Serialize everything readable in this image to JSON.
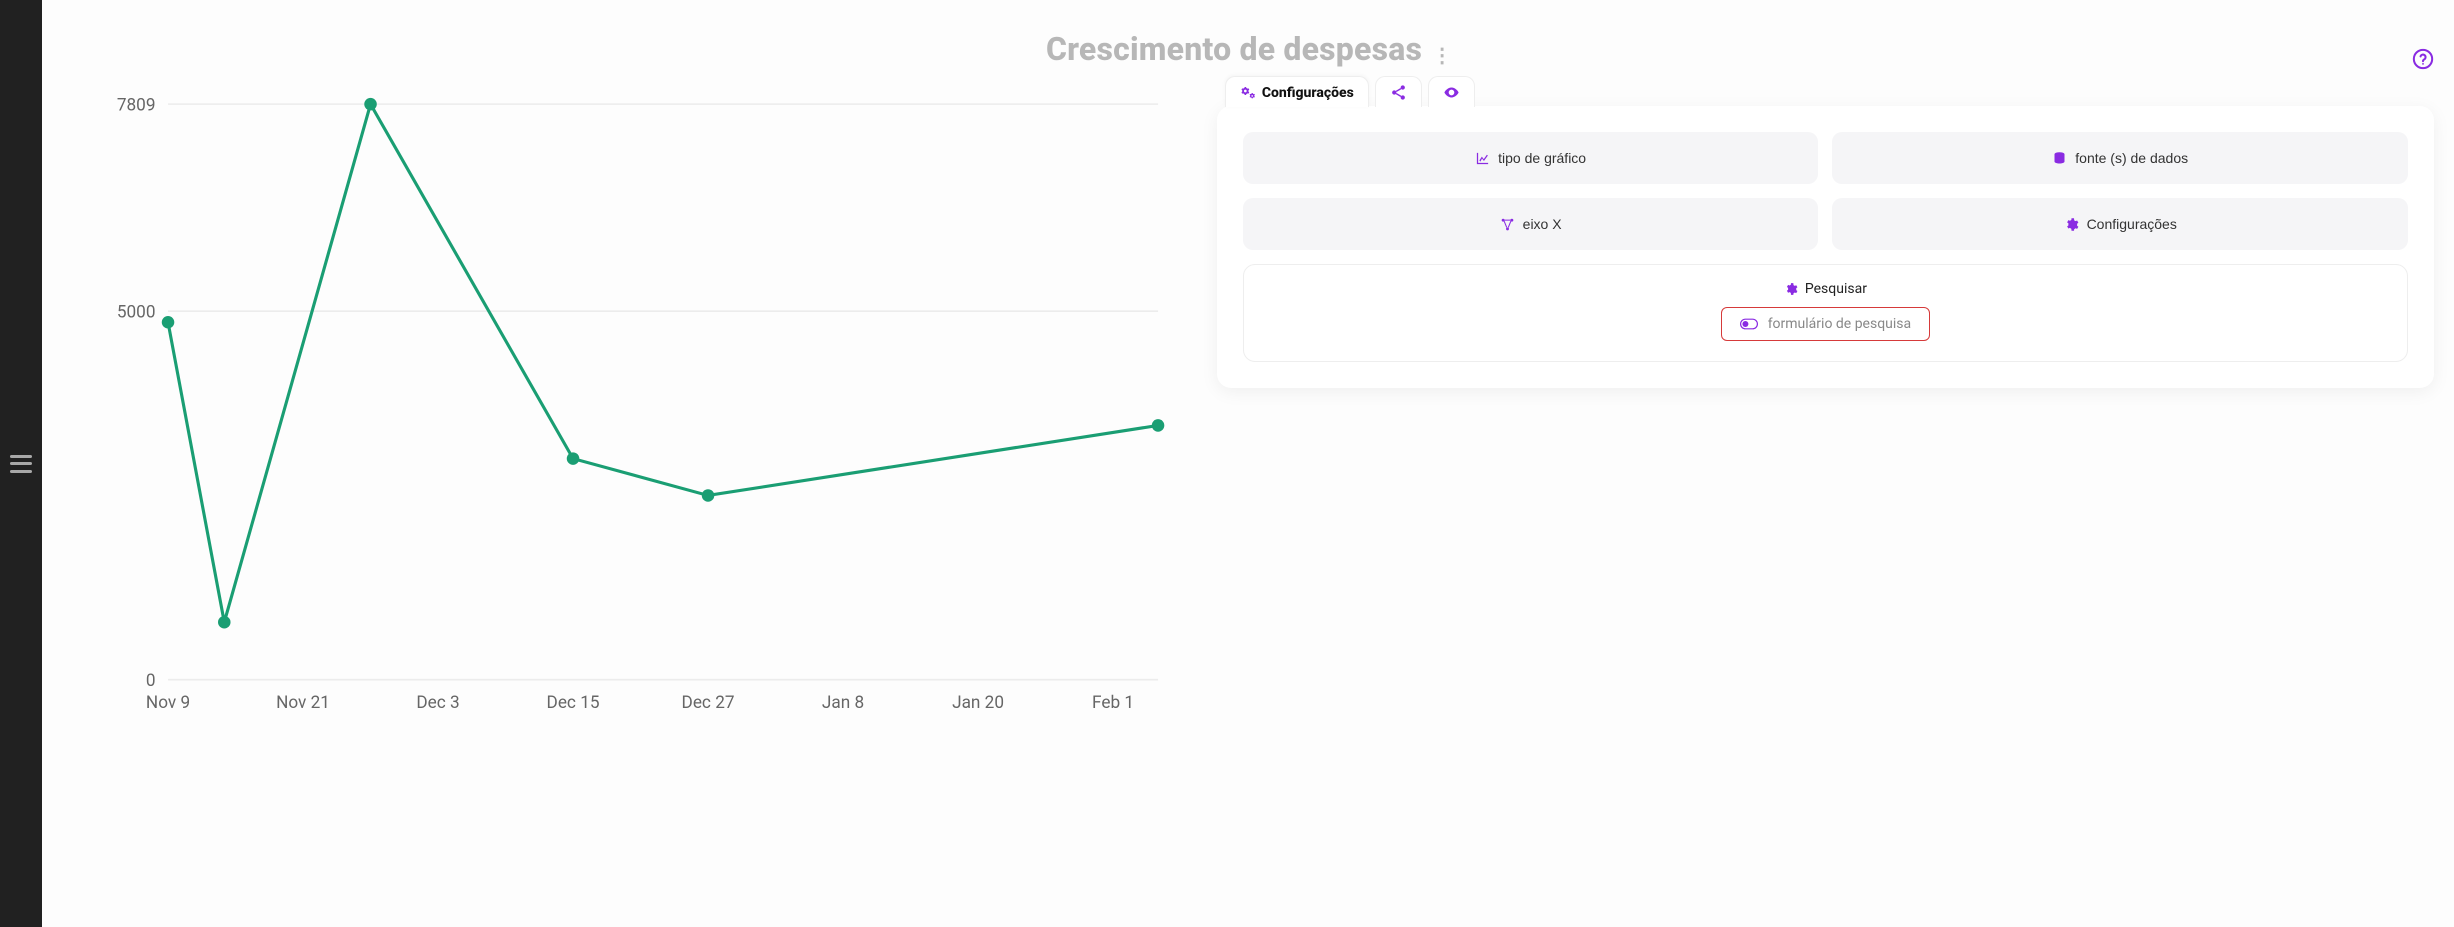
{
  "accent": "#8a2be2",
  "title": "Crescimento de despesas",
  "tabs": {
    "config": "Configurações"
  },
  "options": {
    "chart_type": "tipo de gráfico",
    "data_source": "fonte (s) de dados",
    "axis_x": "eixo X",
    "settings": "Configurações"
  },
  "search": {
    "title": "Pesquisar",
    "form_toggle": "formulário de pesquisa",
    "highlight_color": "#d63a3a"
  },
  "chart": {
    "type": "line",
    "series_color": "#1a9e73",
    "marker_radius": 4,
    "line_width": 2,
    "background": "#ffffff",
    "grid_color": "#ececec",
    "axis_text_color": "#666666",
    "axis_font_size": 11,
    "x_labels": [
      "Nov 9",
      "Nov 21",
      "Dec 3",
      "Dec 15",
      "Dec 27",
      "Jan 8",
      "Jan 20",
      "Feb 1"
    ],
    "x_tick_positions": [
      0,
      12,
      24,
      36,
      48,
      60,
      72,
      84
    ],
    "y_ticks": [
      0,
      5000,
      7809
    ],
    "ylim": [
      0,
      7809
    ],
    "xlim": [
      0,
      88
    ],
    "points": [
      {
        "x": 0,
        "y": 4850
      },
      {
        "x": 5,
        "y": 780
      },
      {
        "x": 18,
        "y": 7809
      },
      {
        "x": 36,
        "y": 3000
      },
      {
        "x": 48,
        "y": 2500
      },
      {
        "x": 88,
        "y": 3450
      }
    ]
  }
}
